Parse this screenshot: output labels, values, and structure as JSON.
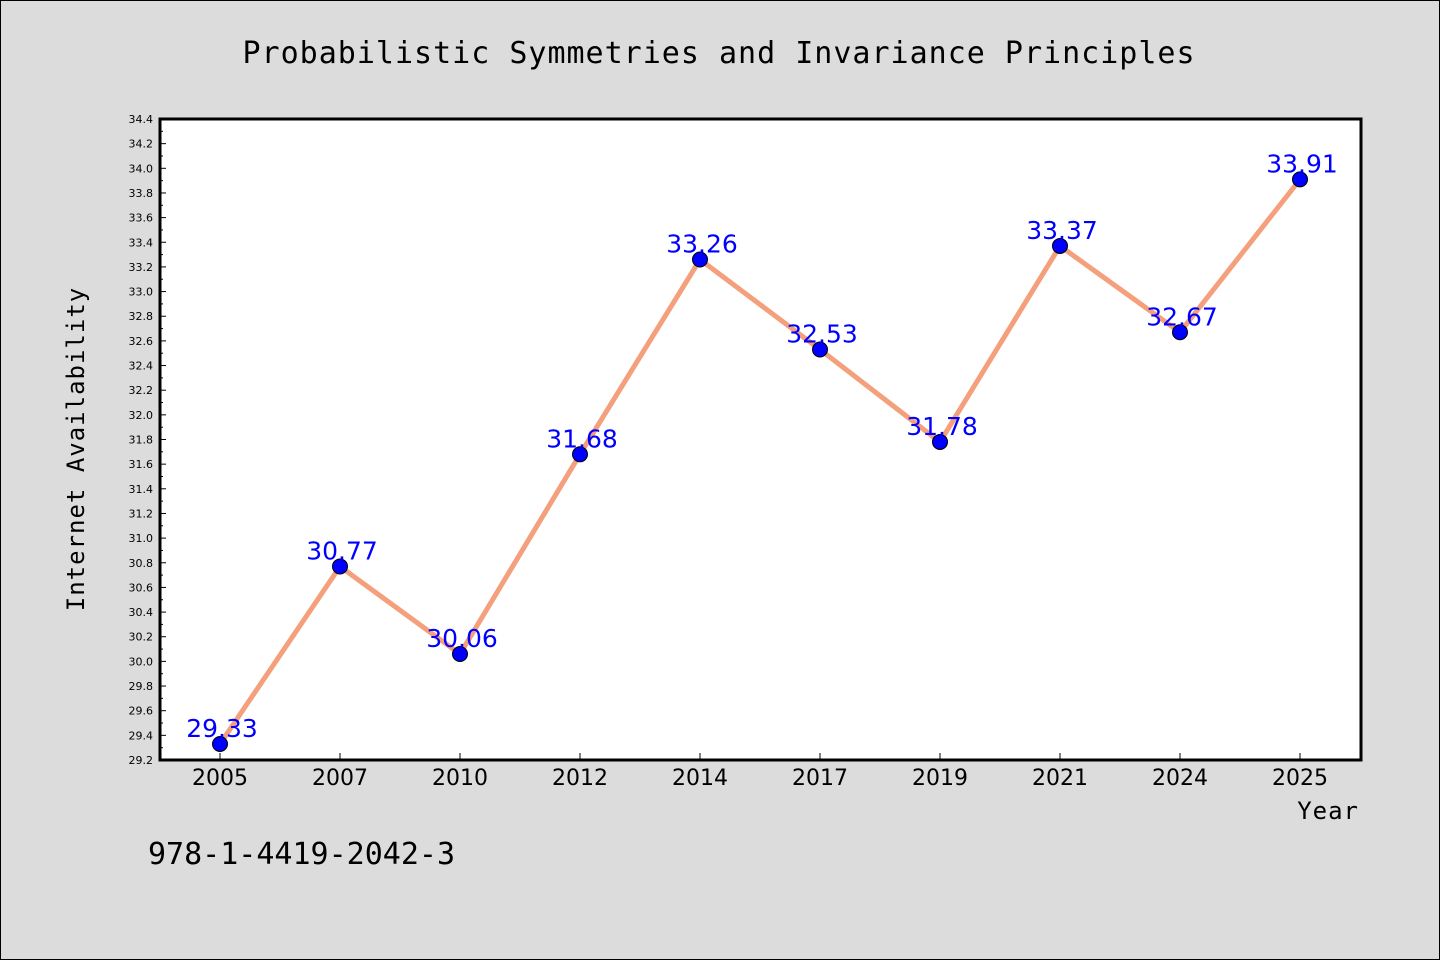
{
  "chart_data": {
    "type": "line",
    "title": "Probabilistic Symmetries and Invariance Principles",
    "xlabel": "Year",
    "ylabel": "Internet Availability",
    "categories": [
      "2005",
      "2007",
      "2010",
      "2012",
      "2014",
      "2017",
      "2019",
      "2021",
      "2024",
      "2025"
    ],
    "series": [
      {
        "values": [
          29.33,
          30.77,
          30.06,
          31.68,
          33.26,
          32.53,
          31.78,
          33.37,
          32.67,
          33.91
        ],
        "line_color": "#f4a07c",
        "marker_color": "#0000ff"
      }
    ],
    "data_labels": [
      "29.33",
      "30.77",
      "30.06",
      "31.68",
      "33.26",
      "32.53",
      "31.78",
      "33.37",
      "32.67",
      "33.91"
    ],
    "ylim": [
      29.2,
      34.4
    ],
    "yticks": [
      "29.2",
      "29.4",
      "29.6",
      "29.8",
      "30.0",
      "30.2",
      "30.4",
      "30.6",
      "30.8",
      "31.0",
      "31.2",
      "31.4",
      "31.6",
      "31.8",
      "32.0",
      "32.2",
      "32.4",
      "32.6",
      "32.8",
      "33.0",
      "33.2",
      "33.4",
      "33.6",
      "33.8",
      "34.0",
      "34.2",
      "34.4"
    ],
    "grid": false,
    "background": "#dcdcdc",
    "plot_background": "#ffffff"
  },
  "footer": {
    "isbn": "978-1-4419-2042-3"
  }
}
